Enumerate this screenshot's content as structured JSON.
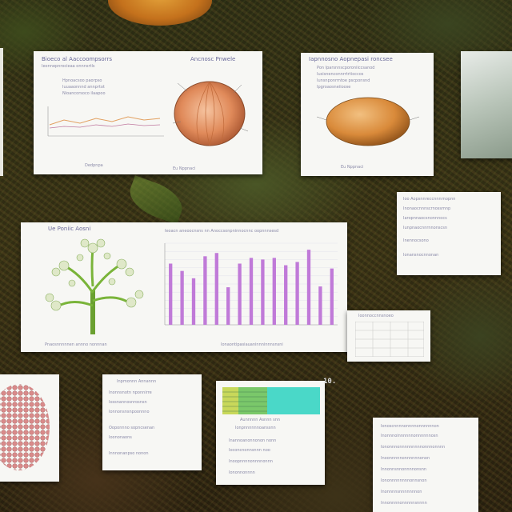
{
  "card1": {
    "title_left": "Bioeco al Aaccoompsorrs",
    "title_right": "Ancnosc Pnwele",
    "sub1": "Ieonnepnrocieaa onnnsrtls",
    "para": [
      "Hpnoacsoo paorpso",
      "Iuuaaonnnd annprtot",
      "Nioancorsoco ilaapoo"
    ],
    "footer_left": "Dedpnpa",
    "footer_right": "Eu Nppnaci"
  },
  "card2": {
    "title": "Iapnnosno Aopnepasi roncsee",
    "lines": [
      "Pon Iparsnnscporoniiccsanod",
      "Iusisnenconnrrtrtioccos",
      "Iunsnponrmtoe pscponsnd",
      "Ipgroaosneiioose"
    ],
    "footer": "Eu Nppnaci"
  },
  "card_chart": {
    "left_title": "Ue Poniic Aosni",
    "header": "Ieoacn aneoocnsns nn Anoccsonpninnocnnc oopnnnsesd",
    "left_caption": "Pnaosnnnnnen annno nonnnan",
    "bottom_caption": "Ionaontipasiauaninnninnnsnsni",
    "bar_color": "#c07ad8"
  },
  "chart_data": {
    "type": "bar",
    "categories": [
      "",
      "",
      "",
      "",
      "",
      "",
      "",
      "",
      "",
      "",
      "",
      "",
      "",
      "",
      ""
    ],
    "values": [
      75,
      66,
      57,
      84,
      88,
      46,
      75,
      82,
      80,
      82,
      73,
      77,
      92,
      47,
      69
    ],
    "ylim": [
      0,
      100
    ],
    "grid": true,
    "title": "",
    "xlabel": "",
    "ylabel": ""
  },
  "card_right_top": {
    "lines": [
      "Ioo Aopsnnreccnnnrnopnn",
      "Inonaocnnnscrnossmnp",
      "Iaropnnaocsnonnnocs",
      "Iunpnaocnnrnnonscsn",
      "Inennocsono",
      "Ionansnocnnonan"
    ]
  },
  "card_table": {
    "title": "Ioonnoccnnsnoeo"
  },
  "card_bottom_mid": {
    "title": "Inpmonnn Annannn",
    "lines": [
      "Inonnsnotn nponnirre",
      "Iossnannosnrosnsn",
      "Ionnonsnsnpoonnno",
      "Ooponnno sopncsenan",
      "Ioononaons",
      "Innnonanpso nonon"
    ]
  },
  "card_bottom_center": {
    "caption1": "Aunnnnn Asnnn snn",
    "caption2": "Ionpnnnnnnoanssnn",
    "lines": [
      "Inannoanonnonon nonn",
      "Ioconcnonnsnnn noo",
      "Inoopnnnnonnnnonnn",
      "Iononnonnnn"
    ]
  },
  "pin_label": "10.",
  "card_bottom_right": {
    "lines": [
      "Ionoscnnnnonnnnonnnnnnon",
      "Inonnnoinnnnnnonnnnnnosn",
      "Iononnnonnnnnnnnnonnnonnnn",
      "Inoonnnnnonnnnnnonon",
      "Innonnsnnonnnnonsnn",
      "Iononnnnnnnnonnsnon",
      "Inonnnnsnnnnnnnon",
      "Innonnnnonnnnnsnnnn"
    ]
  }
}
